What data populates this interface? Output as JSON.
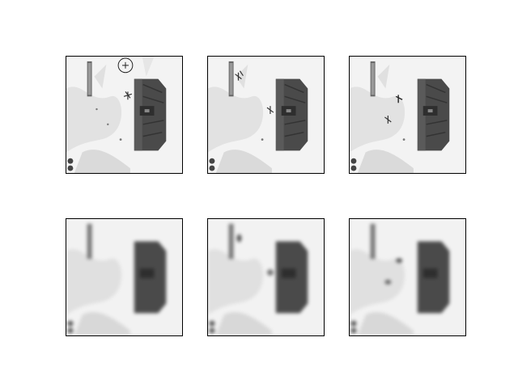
{
  "figure": {
    "rows": 2,
    "cols": 3,
    "panels": [
      {
        "row": 1,
        "col": 1,
        "view": "frame",
        "target_marker": true,
        "units": "cluster"
      },
      {
        "row": 1,
        "col": 2,
        "view": "frame",
        "target_marker": false,
        "units": "spread"
      },
      {
        "row": 1,
        "col": 3,
        "view": "frame",
        "target_marker": false,
        "units": "pair"
      },
      {
        "row": 2,
        "col": 1,
        "view": "blurred",
        "target_marker": false,
        "units": "none"
      },
      {
        "row": 2,
        "col": 2,
        "view": "blurred",
        "target_marker": false,
        "units": "spread"
      },
      {
        "row": 2,
        "col": 3,
        "view": "blurred",
        "target_marker": false,
        "units": "pair"
      }
    ]
  },
  "colors": {
    "ice": "#f1f1f1",
    "snow_shadow": "#d9d9d9",
    "building": "#4a4a4a",
    "building_dark": "#2e2e2e",
    "unit": "#3a3a3a",
    "frame": "#000000"
  },
  "icons": {
    "building": "fortress-building",
    "unit": "infantry-unit",
    "target": "crosshair-target",
    "minimap_buttons": "round-hud-buttons",
    "health_bar": "vertical-status-bar"
  }
}
